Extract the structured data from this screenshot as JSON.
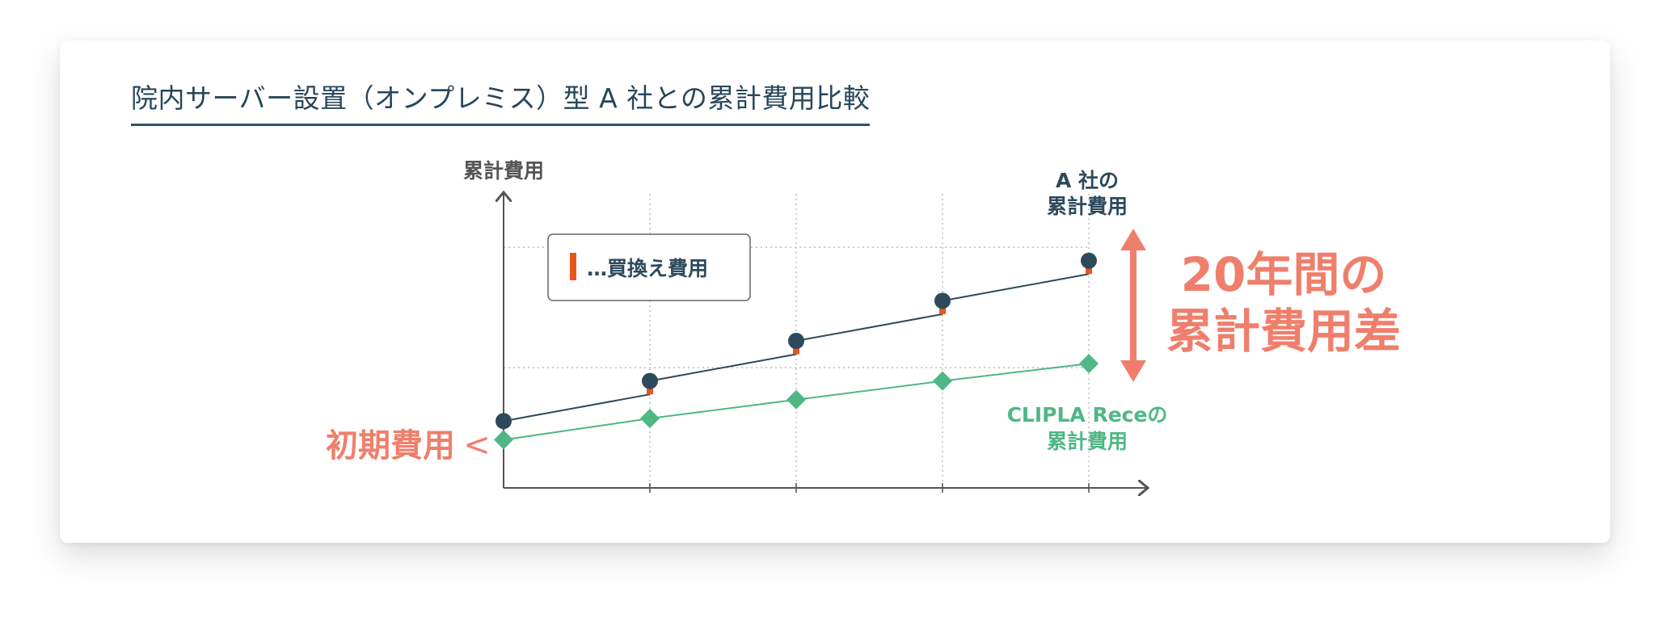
{
  "page_title": "院内サーバー設置（オンプレミス）型 A 社との累計費用比較",
  "chart_data": {
    "type": "line",
    "ylabel": "累計費用",
    "xlabel": "",
    "x": [
      0,
      1,
      2,
      3,
      4
    ],
    "series": [
      {
        "name": "A 社の累計費用",
        "label_lines": [
          "A 社の",
          "累計費用"
        ],
        "color": "#2d4a5c",
        "marker": "circle",
        "values": [
          5.0,
          8.0,
          11.0,
          14.0,
          17.0
        ],
        "replacement_costs": [
          0,
          1.0,
          1.0,
          1.0,
          1.0
        ]
      },
      {
        "name": "CLIPLA Receの累計費用",
        "label_lines": [
          "CLIPLA Receの",
          "累計費用"
        ],
        "color": "#4fb784",
        "marker": "diamond",
        "values": [
          3.6,
          5.2,
          6.6,
          8.0,
          9.3
        ]
      }
    ],
    "ylim": [
      0,
      22
    ],
    "grid": true,
    "legend": {
      "marker_color": "#e8561c",
      "label": "…買換え費用",
      "position": "top-left"
    },
    "annotations": {
      "initial_cost": "初期費用",
      "initial_cost_arrow": "<",
      "difference_lines": [
        "20年間の",
        "累計費用差"
      ],
      "accent_color": "#ef7f6c"
    }
  }
}
